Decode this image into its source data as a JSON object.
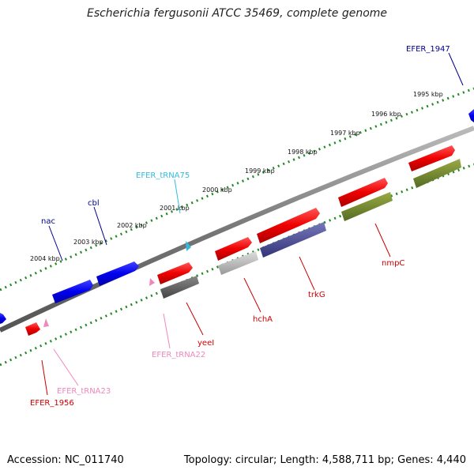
{
  "header": {
    "title": "Escherichia fergusonii ATCC 35469, complete genome"
  },
  "footer": {
    "accession": "Accession: NC_011740",
    "summary": "Topology: circular; Length: 4,588,711 bp; Genes: 4,440"
  },
  "scale": {
    "ticks": [
      {
        "label": "2004 kbp"
      },
      {
        "label": "2003 kbp"
      },
      {
        "label": "2002 kbp"
      },
      {
        "label": "2001 kbp"
      },
      {
        "label": "2000 kbp"
      },
      {
        "label": "1999 kbp"
      },
      {
        "label": "1998 kbp"
      },
      {
        "label": "1997 kbp"
      },
      {
        "label": "1996 kbp"
      },
      {
        "label": "1995 kbp"
      }
    ]
  },
  "features": [
    {
      "label": "EFER_1947",
      "color": "#00008b"
    },
    {
      "label": "cbl",
      "color": "#00008b"
    },
    {
      "label": "nac",
      "color": "#00008b"
    },
    {
      "label": "EFER_tRNA75",
      "color": "#33bbdd"
    },
    {
      "label": "nmpC",
      "color": "#cc0000"
    },
    {
      "label": "trkG",
      "color": "#cc0000"
    },
    {
      "label": "hchA",
      "color": "#cc0000"
    },
    {
      "label": "yeeI",
      "color": "#cc0000"
    },
    {
      "label": "EFER_tRNA22",
      "color": "#ee88bb"
    },
    {
      "label": "EFER_tRNA23",
      "color": "#ee88bb"
    },
    {
      "label": "EFER_1956",
      "color": "#cc0000"
    }
  ]
}
